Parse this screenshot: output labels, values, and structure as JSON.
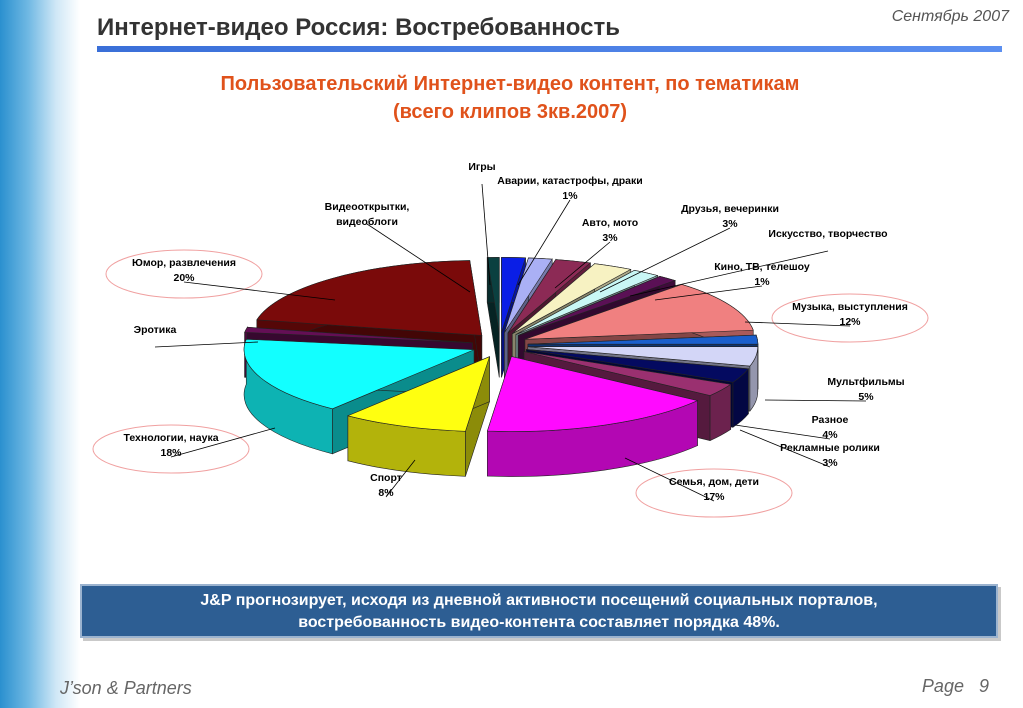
{
  "header": {
    "title": "Интернет-видео Россия: Востребованность",
    "date": "Сентябрь 2007"
  },
  "chart_data": {
    "type": "pie",
    "title_line1": "Пользовательский Интернет-видео контент, по тематикам",
    "title_line2": "(всего клипов 3кв.2007)",
    "slices": [
      {
        "label": "Игры",
        "pct": null,
        "color": "#0a1ee6"
      },
      {
        "label": "Аварии, катастрофы, драки",
        "pct": "1%",
        "value": 1,
        "color": "#aab0f5"
      },
      {
        "label": "Авто, мото",
        "pct": "3%",
        "value": 3,
        "color": "#8c2a55"
      },
      {
        "label": "Друзья, вечеринки",
        "pct": "3%",
        "value": 3,
        "color": "#f7f2c2"
      },
      {
        "label": "Искусство, творчество",
        "pct": null,
        "color": "#c9f7f5"
      },
      {
        "label": "Кино, ТВ, телешоу",
        "pct": "1%",
        "value": 1,
        "color": "#5a1055"
      },
      {
        "label": "Музыка, выступления",
        "pct": "12%",
        "value": 12,
        "color": "#f08080"
      },
      {
        "label": "",
        "pct": null,
        "color": "#1a5fcc"
      },
      {
        "label": "Мультфильмы",
        "pct": "5%",
        "value": 5,
        "color": "#d3d6f7"
      },
      {
        "label": "Разное",
        "pct": "4%",
        "value": 4,
        "color": "#040a60"
      },
      {
        "label": "Рекламные ролики",
        "pct": "3%",
        "value": 3,
        "color": "#9a3070"
      },
      {
        "label": "Семья, дом, дети",
        "pct": "17%",
        "value": 17,
        "color": "#ff0aff"
      },
      {
        "label": "Спорт",
        "pct": "8%",
        "value": 8,
        "color": "#ffff10"
      },
      {
        "label": "Технологии, наука",
        "pct": "18%",
        "value": 18,
        "color": "#12ffff"
      },
      {
        "label": "Эротика",
        "pct": null,
        "color": "#640f55"
      },
      {
        "label": "Юмор, развлечения",
        "pct": "20%",
        "value": 20,
        "color": "#7a0a0a"
      },
      {
        "label": "Видеооткрытки, видеоблоги",
        "pct": null,
        "color": "#0b4040"
      }
    ]
  },
  "note": {
    "line1": "J&P прогнозирует, исходя из дневной активности посещений социальных порталов,",
    "line2": "востребованность видео-контента составляет порядка 48%."
  },
  "footer": {
    "company": "J’son & Partners",
    "page_label": "Page",
    "page_number": "9"
  }
}
